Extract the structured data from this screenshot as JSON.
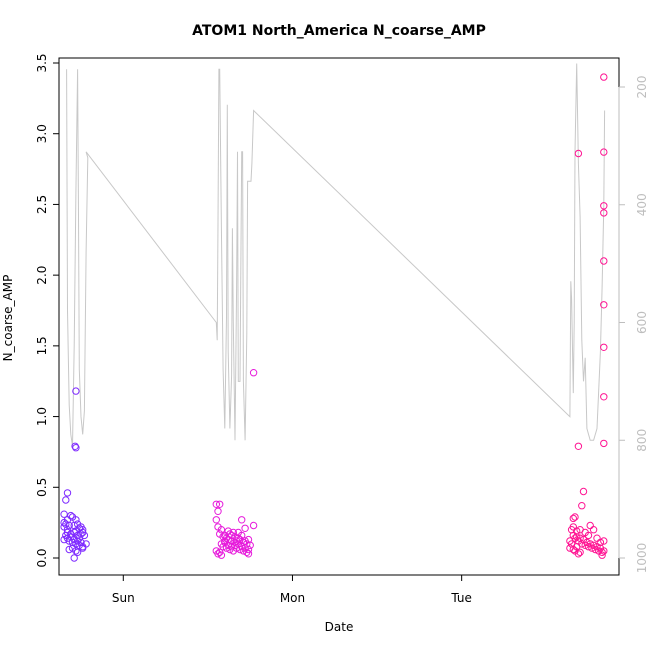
{
  "chart_data": {
    "type": "scatter",
    "title": "ATOM1 North_America N_coarse_AMP",
    "xlabel": "Date",
    "ylabel": "N_coarse_AMP",
    "x_ticks": [
      "Sun",
      "Mon",
      "Tue"
    ],
    "x_tick_values": [
      0,
      1,
      2
    ],
    "y_ticks": [
      "0.0",
      "0.5",
      "1.0",
      "1.5",
      "2.0",
      "2.5",
      "3.0",
      "3.5"
    ],
    "ylim": [
      0,
      3.5
    ],
    "xlim": [
      -0.38,
      2.93
    ],
    "right_axis": {
      "ticks": [
        "200",
        "400",
        "600",
        "800",
        "1000"
      ],
      "range_top": 170,
      "range_bottom": 1010,
      "reversed": true,
      "color": "#bebebe"
    },
    "grid": false,
    "legend": "none",
    "series": [
      {
        "marker": "open-circle",
        "color": "#7f2bff",
        "points": [
          [
            -0.33,
            0.46
          ],
          [
            -0.34,
            0.41
          ],
          [
            -0.35,
            0.31
          ],
          [
            -0.33,
            0.27
          ],
          [
            -0.35,
            0.25
          ],
          [
            -0.34,
            0.24
          ],
          [
            -0.32,
            0.23
          ],
          [
            -0.35,
            0.22
          ],
          [
            -0.33,
            0.2
          ],
          [
            -0.31,
            0.3
          ],
          [
            -0.3,
            0.29
          ],
          [
            -0.28,
            0.27
          ],
          [
            -0.29,
            0.23
          ],
          [
            -0.27,
            0.24
          ],
          [
            -0.25,
            0.22
          ],
          [
            -0.24,
            0.2
          ],
          [
            -0.34,
            0.16
          ],
          [
            -0.33,
            0.14
          ],
          [
            -0.35,
            0.13
          ],
          [
            -0.32,
            0.12
          ],
          [
            -0.31,
            0.15
          ],
          [
            -0.3,
            0.11
          ],
          [
            -0.29,
            0.13
          ],
          [
            -0.28,
            0.1
          ],
          [
            -0.27,
            0.12
          ],
          [
            -0.26,
            0.09
          ],
          [
            -0.25,
            0.11
          ],
          [
            -0.24,
            0.08
          ],
          [
            -0.3,
            0.07
          ],
          [
            -0.32,
            0.06
          ],
          [
            -0.28,
            0.05
          ],
          [
            -0.27,
            0.04
          ],
          [
            -0.29,
            0.0
          ],
          [
            -0.26,
            0.14
          ],
          [
            -0.25,
            0.17
          ],
          [
            -0.24,
            0.18
          ],
          [
            -0.23,
            0.16
          ],
          [
            -0.33,
            0.18
          ],
          [
            -0.31,
            0.17
          ],
          [
            -0.28,
            0.19
          ],
          [
            -0.27,
            0.16
          ],
          [
            -0.24,
            0.07
          ],
          [
            -0.22,
            0.1
          ],
          [
            -0.26,
            0.21
          ],
          [
            -0.29,
            0.18
          ],
          [
            -0.28,
            1.18
          ],
          [
            -0.285,
            0.79
          ],
          [
            -0.28,
            0.78
          ]
        ]
      },
      {
        "marker": "open-circle",
        "color": "#e61adb",
        "points": [
          [
            0.55,
            0.38
          ],
          [
            0.56,
            0.33
          ],
          [
            0.57,
            0.38
          ],
          [
            0.55,
            0.27
          ],
          [
            0.56,
            0.22
          ],
          [
            0.58,
            0.2
          ],
          [
            0.57,
            0.17
          ],
          [
            0.59,
            0.15
          ],
          [
            0.6,
            0.16
          ],
          [
            0.61,
            0.14
          ],
          [
            0.62,
            0.13
          ],
          [
            0.63,
            0.17
          ],
          [
            0.64,
            0.16
          ],
          [
            0.65,
            0.18
          ],
          [
            0.66,
            0.15
          ],
          [
            0.67,
            0.12
          ],
          [
            0.68,
            0.14
          ],
          [
            0.69,
            0.13
          ],
          [
            0.7,
            0.16
          ],
          [
            0.71,
            0.11
          ],
          [
            0.72,
            0.12
          ],
          [
            0.73,
            0.1
          ],
          [
            0.74,
            0.13
          ],
          [
            0.75,
            0.09
          ],
          [
            0.58,
            0.1
          ],
          [
            0.59,
            0.08
          ],
          [
            0.6,
            0.11
          ],
          [
            0.61,
            0.07
          ],
          [
            0.62,
            0.09
          ],
          [
            0.63,
            0.06
          ],
          [
            0.64,
            0.08
          ],
          [
            0.65,
            0.05
          ],
          [
            0.66,
            0.09
          ],
          [
            0.67,
            0.07
          ],
          [
            0.68,
            0.1
          ],
          [
            0.69,
            0.06
          ],
          [
            0.7,
            0.08
          ],
          [
            0.71,
            0.05
          ],
          [
            0.72,
            0.07
          ],
          [
            0.73,
            0.04
          ],
          [
            0.74,
            0.06
          ],
          [
            0.55,
            0.05
          ],
          [
            0.56,
            0.03
          ],
          [
            0.57,
            0.04
          ],
          [
            0.58,
            0.02
          ],
          [
            0.62,
            0.19
          ],
          [
            0.64,
            0.12
          ],
          [
            0.66,
            0.11
          ],
          [
            0.68,
            0.18
          ],
          [
            0.7,
            0.27
          ],
          [
            0.72,
            0.21
          ],
          [
            0.77,
            0.23
          ],
          [
            0.77,
            1.31
          ],
          [
            0.6,
            0.12
          ],
          [
            0.74,
            0.03
          ]
        ]
      },
      {
        "marker": "open-circle",
        "color": "#ff1493",
        "points": [
          [
            2.65,
            0.2
          ],
          [
            2.66,
            0.16
          ],
          [
            2.67,
            0.14
          ],
          [
            2.68,
            0.19
          ],
          [
            2.69,
            0.12
          ],
          [
            2.7,
            0.14
          ],
          [
            2.71,
            0.1
          ],
          [
            2.72,
            0.13
          ],
          [
            2.73,
            0.09
          ],
          [
            2.74,
            0.11
          ],
          [
            2.75,
            0.08
          ],
          [
            2.76,
            0.1
          ],
          [
            2.77,
            0.07
          ],
          [
            2.78,
            0.09
          ],
          [
            2.79,
            0.06
          ],
          [
            2.8,
            0.08
          ],
          [
            2.81,
            0.05
          ],
          [
            2.82,
            0.07
          ],
          [
            2.83,
            0.04
          ],
          [
            2.64,
            0.12
          ],
          [
            2.65,
            0.1
          ],
          [
            2.66,
            0.06
          ],
          [
            2.67,
            0.05
          ],
          [
            2.68,
            0.08
          ],
          [
            2.69,
            0.03
          ],
          [
            2.7,
            0.04
          ],
          [
            2.66,
            0.28
          ],
          [
            2.7,
            0.2
          ],
          [
            2.73,
            0.18
          ],
          [
            2.76,
            0.23
          ],
          [
            2.78,
            0.2
          ],
          [
            2.8,
            0.14
          ],
          [
            2.82,
            0.11
          ],
          [
            2.84,
            0.12
          ],
          [
            2.84,
            0.05
          ],
          [
            2.83,
            0.02
          ],
          [
            2.66,
            0.22
          ],
          [
            2.67,
            0.29
          ],
          [
            2.71,
            0.37
          ],
          [
            2.72,
            0.47
          ],
          [
            2.69,
            2.86
          ],
          [
            2.69,
            0.79
          ],
          [
            2.84,
            3.4
          ],
          [
            2.84,
            2.87
          ],
          [
            2.84,
            2.49
          ],
          [
            2.84,
            2.44
          ],
          [
            2.84,
            2.1
          ],
          [
            2.84,
            1.79
          ],
          [
            2.84,
            1.49
          ],
          [
            2.84,
            1.14
          ],
          [
            2.84,
            0.81
          ],
          [
            2.68,
            0.15
          ],
          [
            2.75,
            0.16
          ],
          [
            2.64,
            0.07
          ]
        ]
      }
    ],
    "secondary_series": {
      "type": "line",
      "color": "#c8c8c8",
      "axis": "right",
      "points": [
        [
          -0.335,
          170
        ],
        [
          -0.33,
          580
        ],
        [
          -0.32,
          740
        ],
        [
          -0.31,
          790
        ],
        [
          -0.3,
          810
        ],
        [
          -0.29,
          640
        ],
        [
          -0.28,
          380
        ],
        [
          -0.27,
          170
        ],
        [
          -0.265,
          420
        ],
        [
          -0.26,
          680
        ],
        [
          -0.25,
          760
        ],
        [
          -0.24,
          790
        ],
        [
          -0.23,
          750
        ],
        [
          -0.22,
          480
        ],
        [
          -0.21,
          320
        ],
        [
          -0.22,
          310
        ],
        [
          0.55,
          600
        ],
        [
          0.555,
          630
        ],
        [
          0.56,
          430
        ],
        [
          0.565,
          170
        ],
        [
          0.57,
          170
        ],
        [
          0.58,
          440
        ],
        [
          0.59,
          680
        ],
        [
          0.6,
          780
        ],
        [
          0.61,
          590
        ],
        [
          0.615,
          230
        ],
        [
          0.62,
          650
        ],
        [
          0.63,
          780
        ],
        [
          0.64,
          690
        ],
        [
          0.645,
          440
        ],
        [
          0.65,
          600
        ],
        [
          0.66,
          800
        ],
        [
          0.67,
          540
        ],
        [
          0.675,
          310
        ],
        [
          0.68,
          700
        ],
        [
          0.69,
          700
        ],
        [
          0.7,
          310
        ],
        [
          0.705,
          310
        ],
        [
          0.71,
          700
        ],
        [
          0.72,
          800
        ],
        [
          0.73,
          620
        ],
        [
          0.735,
          360
        ],
        [
          0.745,
          360
        ],
        [
          0.755,
          360
        ],
        [
          0.76,
          330
        ],
        [
          0.77,
          240
        ],
        [
          2.64,
          760
        ],
        [
          2.645,
          530
        ],
        [
          2.65,
          560
        ],
        [
          2.66,
          720
        ],
        [
          2.665,
          600
        ],
        [
          2.67,
          310
        ],
        [
          2.68,
          160
        ],
        [
          2.69,
          330
        ],
        [
          2.7,
          420
        ],
        [
          2.71,
          630
        ],
        [
          2.72,
          700
        ],
        [
          2.73,
          660
        ],
        [
          2.74,
          780
        ],
        [
          2.76,
          800
        ],
        [
          2.78,
          800
        ],
        [
          2.8,
          780
        ],
        [
          2.82,
          650
        ],
        [
          2.83,
          540
        ],
        [
          2.84,
          400
        ],
        [
          2.845,
          240
        ]
      ]
    }
  }
}
